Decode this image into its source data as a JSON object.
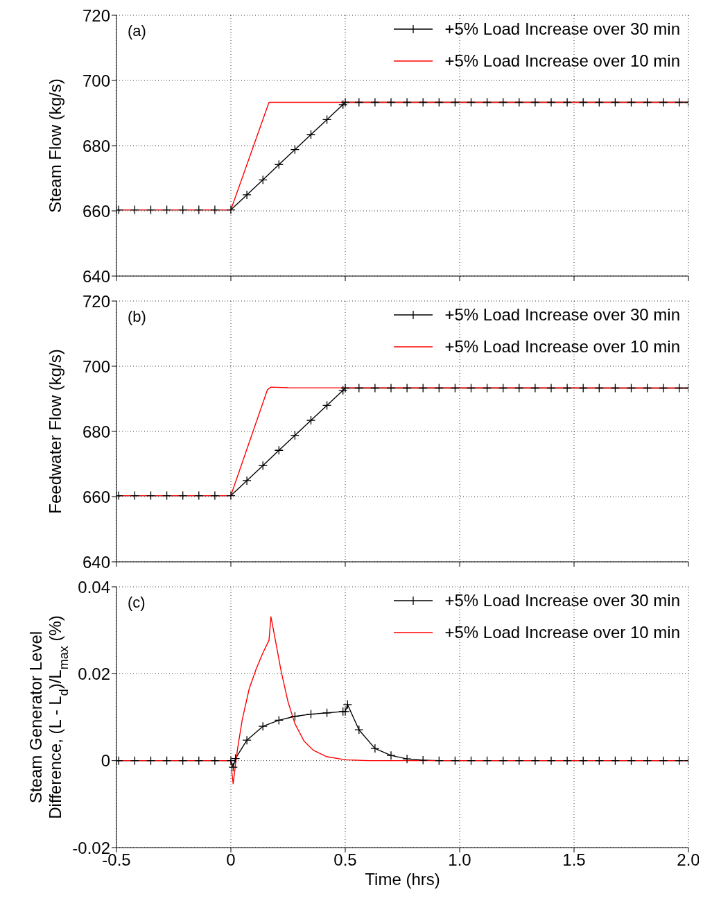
{
  "chart_data": [
    {
      "type": "line",
      "ylabel": "Steam Flow (kg/s)",
      "annotations": [
        "(a)"
      ],
      "xlim": [
        -0.5,
        2.0
      ],
      "xticks": [
        -0.5,
        0,
        0.5,
        1,
        1.5,
        2
      ],
      "ylim": [
        640,
        720
      ],
      "yticks": [
        640,
        660,
        680,
        700,
        720
      ],
      "tick_labels": "y",
      "grid": true,
      "legend": "top right",
      "line_style": "solid",
      "series": [
        {
          "name": "+5% Load Increase over 30 min",
          "color": "#000000",
          "marker": "cross",
          "x": [
            -0.5,
            -0.49,
            -0.42,
            -0.35,
            -0.28,
            -0.21,
            -0.14,
            -0.07,
            0,
            0.07,
            0.14,
            0.21,
            0.28,
            0.35,
            0.42,
            0.49,
            0.5,
            0.56,
            0.63,
            0.7,
            0.77,
            0.84,
            0.91,
            0.98,
            1.05,
            1.12,
            1.19,
            1.26,
            1.33,
            1.4,
            1.47,
            1.54,
            1.61,
            1.68,
            1.75,
            1.82,
            1.89,
            1.96,
            2.0
          ],
          "values": [
            660.3,
            660.3,
            660.3,
            660.3,
            660.3,
            660.3,
            660.3,
            660.3,
            660.3,
            664.9,
            669.5,
            674.2,
            678.8,
            683.4,
            688.0,
            692.6,
            693.3,
            693.3,
            693.3,
            693.3,
            693.3,
            693.3,
            693.3,
            693.3,
            693.3,
            693.3,
            693.3,
            693.3,
            693.3,
            693.3,
            693.3,
            693.3,
            693.3,
            693.3,
            693.3,
            693.3,
            693.3,
            693.3,
            693.3
          ]
        },
        {
          "name": "+5% Load Increase over 10 min",
          "color": "#ff0000",
          "marker": "none",
          "x": [
            -0.5,
            0,
            0.1667,
            2.0
          ],
          "values": [
            660.3,
            660.3,
            693.3,
            693.3
          ]
        }
      ]
    },
    {
      "type": "line",
      "ylabel": "Feedwater Flow (kg/s)",
      "annotations": [
        "(b)"
      ],
      "xlim": [
        -0.5,
        2.0
      ],
      "xticks": [
        -0.5,
        0,
        0.5,
        1,
        1.5,
        2
      ],
      "ylim": [
        640,
        720
      ],
      "yticks": [
        640,
        660,
        680,
        700,
        720
      ],
      "tick_labels": "y",
      "grid": true,
      "legend": "top right",
      "line_style": "solid",
      "series": [
        {
          "name": "+5% Load Increase over 30 min",
          "color": "#000000",
          "marker": "cross",
          "x": [
            -0.5,
            -0.49,
            -0.42,
            -0.35,
            -0.28,
            -0.21,
            -0.14,
            -0.07,
            0,
            0.07,
            0.14,
            0.21,
            0.28,
            0.35,
            0.42,
            0.49,
            0.5,
            0.56,
            0.63,
            0.7,
            0.77,
            0.84,
            0.91,
            0.98,
            1.05,
            1.12,
            1.19,
            1.26,
            1.33,
            1.4,
            1.47,
            1.54,
            1.61,
            1.68,
            1.75,
            1.82,
            1.89,
            1.96,
            2.0
          ],
          "values": [
            660.3,
            660.3,
            660.3,
            660.3,
            660.3,
            660.3,
            660.3,
            660.3,
            660.3,
            664.9,
            669.5,
            674.2,
            678.8,
            683.4,
            688.0,
            692.6,
            693.3,
            693.3,
            693.3,
            693.3,
            693.3,
            693.3,
            693.3,
            693.3,
            693.3,
            693.3,
            693.3,
            693.3,
            693.3,
            693.3,
            693.3,
            693.3,
            693.3,
            693.3,
            693.3,
            693.3,
            693.3,
            693.3,
            693.3
          ]
        },
        {
          "name": "+5% Load Increase over 10 min",
          "color": "#ff0000",
          "marker": "none",
          "x": [
            -0.5,
            0,
            0.16,
            0.175,
            0.25,
            2.0
          ],
          "values": [
            660.3,
            660.3,
            692.8,
            693.6,
            693.4,
            693.3
          ]
        }
      ]
    },
    {
      "type": "line",
      "xlabel": "Time (hrs)",
      "ylabel": "Steam Generator Level Difference, (L - L$_{d}$)/L$_{max}$ (%)",
      "annotations": [
        "(c)"
      ],
      "xlim": [
        -0.5,
        2.0
      ],
      "xticks": [
        -0.5,
        0,
        0.5,
        {
          "value": 1,
          "label": "1.0"
        },
        {
          "value": 1.5,
          "label": "1.5"
        },
        {
          "value": 2,
          "label": "2.0"
        }
      ],
      "ylim": [
        -0.02,
        0.04
      ],
      "yticks": [
        -0.02,
        0,
        0.02,
        0.04
      ],
      "grid": true,
      "legend": "top right",
      "line_style": "solid",
      "series": [
        {
          "name": "+5% Load Increase over 30 min",
          "color": "#000000",
          "marker": "cross",
          "x": [
            -0.5,
            -0.49,
            -0.42,
            -0.35,
            -0.28,
            -0.21,
            -0.14,
            -0.07,
            0,
            0.01,
            0.02,
            0.07,
            0.14,
            0.21,
            0.28,
            0.35,
            0.42,
            0.49,
            0.5,
            0.51,
            0.56,
            0.63,
            0.7,
            0.77,
            0.84,
            0.91,
            0.98,
            1.05,
            1.12,
            1.19,
            1.26,
            1.33,
            1.4,
            1.47,
            1.54,
            1.61,
            1.68,
            1.75,
            1.82,
            1.89,
            1.96,
            2.0
          ],
          "values": [
            0,
            0,
            0,
            0,
            0,
            0,
            0,
            0,
            0,
            -0.0015,
            0.0005,
            0.0047,
            0.0079,
            0.0093,
            0.0102,
            0.0107,
            0.011,
            0.0113,
            0.0113,
            0.0129,
            0.0071,
            0.0028,
            0.0012,
            0.0004,
            0.0001,
            0,
            0,
            0,
            0,
            0,
            0,
            0,
            0,
            0,
            0,
            0,
            0,
            0,
            0,
            0,
            0,
            0
          ]
        },
        {
          "name": "+5% Load Increase over 10 min",
          "color": "#ff0000",
          "marker": "none",
          "x": [
            -0.5,
            0,
            0.005,
            0.01,
            0.02,
            0.03,
            0.05,
            0.08,
            0.11,
            0.14,
            0.1667,
            0.175,
            0.19,
            0.22,
            0.25,
            0.28,
            0.32,
            0.36,
            0.42,
            0.5,
            0.6,
            2.0
          ],
          "values": [
            0,
            0,
            -0.003,
            -0.0053,
            -0.001,
            0.003,
            0.0095,
            0.0165,
            0.021,
            0.0248,
            0.0277,
            0.0331,
            0.029,
            0.0205,
            0.0135,
            0.0085,
            0.0045,
            0.0024,
            0.0009,
            0.0002,
            0,
            0
          ]
        }
      ]
    }
  ]
}
